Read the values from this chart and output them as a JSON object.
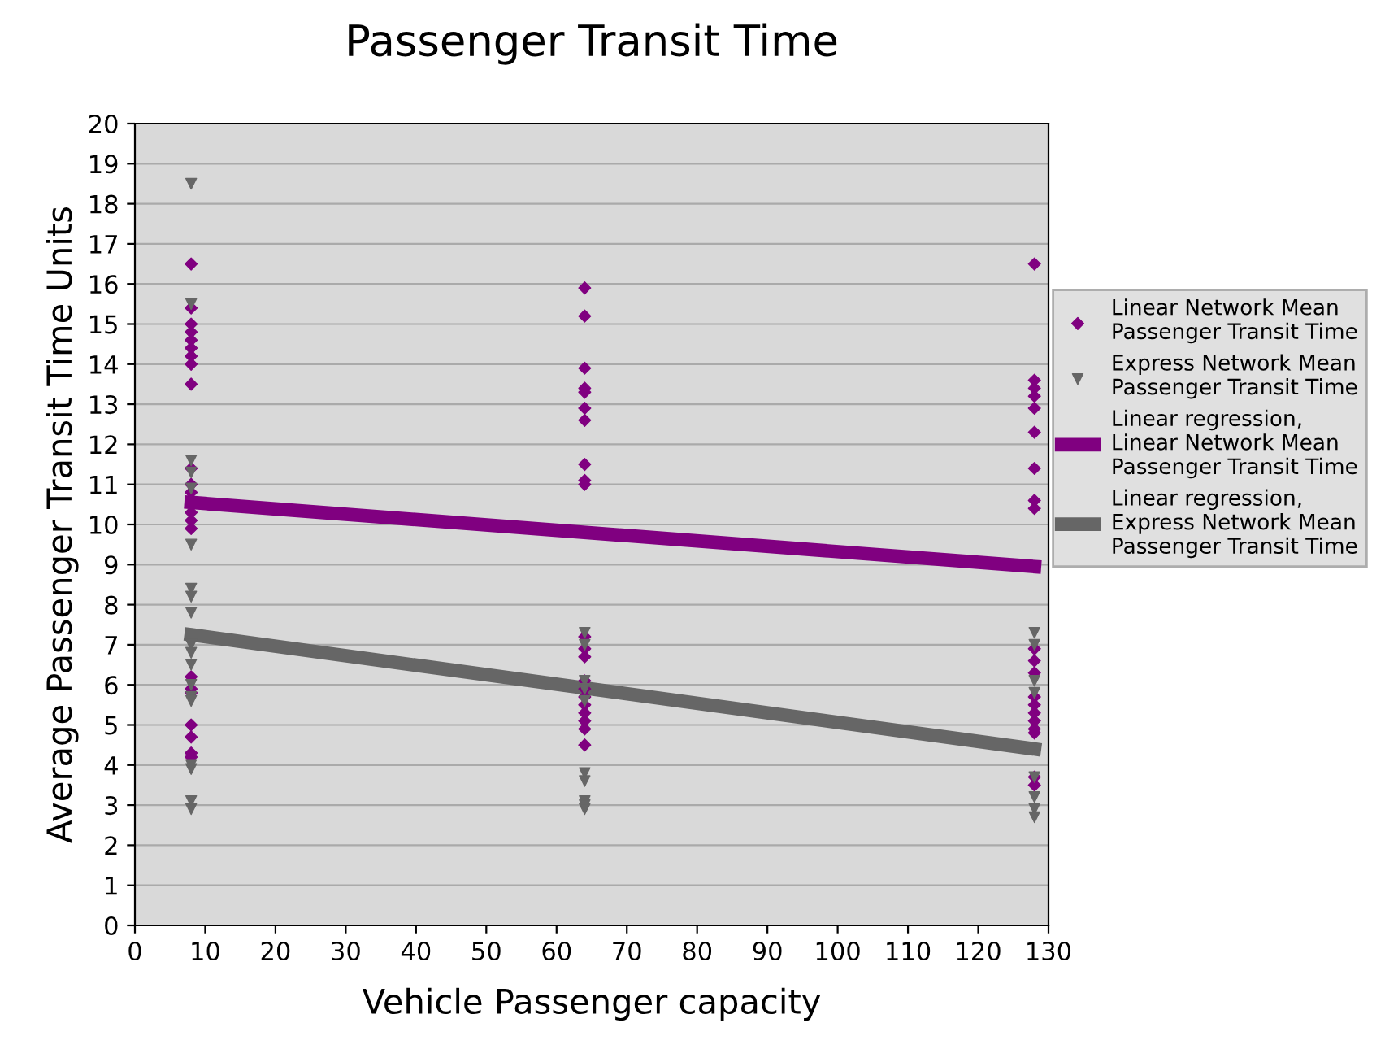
{
  "chart_data": {
    "type": "scatter",
    "title": "Passenger Transit Time",
    "xlabel": "Vehicle Passenger capacity",
    "ylabel": "Average Passenger Transit Time Units",
    "xlim": [
      0,
      130
    ],
    "xticks": [
      0,
      10,
      20,
      30,
      40,
      50,
      60,
      70,
      80,
      90,
      100,
      110,
      120,
      130
    ],
    "ylim": [
      0,
      20
    ],
    "yticks": [
      0,
      1,
      2,
      3,
      4,
      5,
      6,
      7,
      8,
      9,
      10,
      11,
      12,
      13,
      14,
      15,
      16,
      17,
      18,
      19,
      20
    ],
    "grid": "y",
    "legend": "right",
    "series": [
      {
        "name": "Linear Network Mean Passenger Transit Time",
        "marker": "diamond",
        "color": "#800080",
        "x": [
          8,
          8,
          8,
          8,
          8,
          8,
          8,
          8,
          8,
          8,
          8,
          8,
          8,
          8,
          8,
          8,
          8,
          8,
          8,
          8,
          8,
          8,
          64,
          64,
          64,
          64,
          64,
          64,
          64,
          64,
          64,
          64,
          64,
          64,
          64,
          64,
          64,
          64,
          64,
          64,
          64,
          64,
          64,
          128,
          128,
          128,
          128,
          128,
          128,
          128,
          128,
          128,
          128,
          128,
          128,
          128,
          128,
          128,
          128,
          128,
          128,
          128,
          128
        ],
        "values": [
          16.5,
          15.4,
          15.0,
          14.8,
          14.6,
          14.4,
          14.2,
          14.0,
          13.5,
          11.4,
          11.0,
          10.8,
          10.3,
          10.1,
          9.9,
          6.2,
          5.9,
          5.8,
          5.0,
          4.7,
          4.3,
          4.2,
          15.9,
          15.2,
          13.9,
          13.4,
          13.3,
          12.9,
          12.6,
          11.5,
          11.1,
          11.0,
          7.2,
          6.9,
          6.7,
          6.1,
          5.9,
          5.7,
          5.5,
          5.3,
          5.1,
          4.9,
          4.5,
          16.5,
          13.6,
          13.4,
          13.2,
          12.9,
          12.3,
          11.4,
          10.6,
          10.4,
          6.9,
          6.6,
          6.3,
          5.7,
          5.5,
          5.3,
          5.1,
          4.9,
          4.8,
          3.7,
          3.5
        ]
      },
      {
        "name": "Express Network Mean Passenger Transit Time",
        "marker": "triangle",
        "color": "#666666",
        "x": [
          8,
          8,
          8,
          8,
          8,
          8,
          8,
          8,
          8,
          8,
          8,
          8,
          8,
          8,
          8,
          8,
          8,
          8,
          8,
          64,
          64,
          64,
          64,
          64,
          64,
          64,
          64,
          64,
          64,
          128,
          128,
          128,
          128,
          128,
          128,
          128,
          128
        ],
        "values": [
          18.5,
          15.5,
          11.6,
          11.3,
          10.9,
          9.5,
          8.4,
          8.2,
          7.8,
          7.0,
          6.8,
          6.5,
          6.0,
          5.7,
          5.6,
          4.0,
          3.9,
          3.1,
          2.9,
          7.3,
          7.0,
          6.1,
          5.9,
          5.6,
          3.8,
          3.6,
          3.1,
          3.0,
          2.9,
          7.3,
          7.0,
          6.1,
          5.8,
          3.7,
          3.2,
          2.9,
          2.7
        ]
      },
      {
        "name": "Linear regression, Linear Network Mean Passenger Transit Time",
        "type": "line",
        "marker": "none",
        "color": "#800080",
        "x": [
          8,
          128
        ],
        "values": [
          10.55,
          8.95
        ]
      },
      {
        "name": "Linear regression, Express Network Mean Passenger Transit Time",
        "type": "line",
        "marker": "none",
        "color": "#666666",
        "x": [
          8,
          128
        ],
        "values": [
          7.25,
          4.4
        ]
      }
    ]
  }
}
